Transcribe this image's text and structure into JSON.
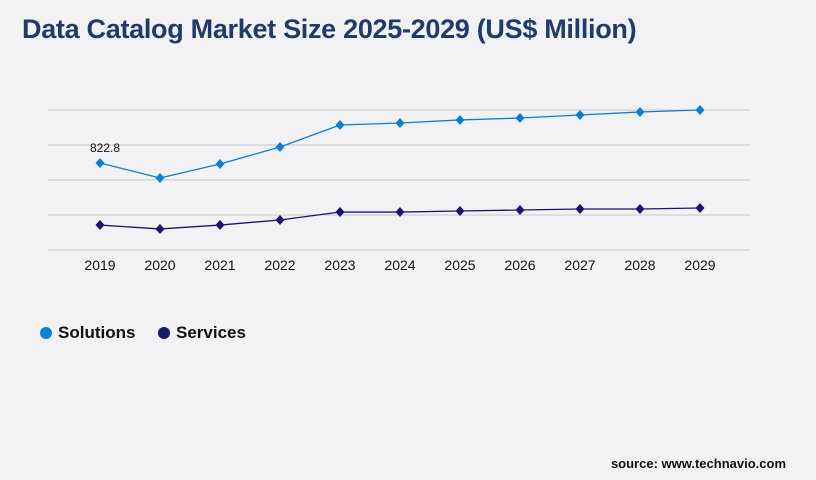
{
  "chart_data": {
    "type": "line",
    "title": "Data Catalog Market Size 2025-2029 (US$ Million)",
    "categories": [
      "2019",
      "2020",
      "2021",
      "2022",
      "2023",
      "2024",
      "2025",
      "2026",
      "2027",
      "2028",
      "2029"
    ],
    "series": [
      {
        "name": "Solutions",
        "color": "#0a7fd6",
        "values": [
          822.8,
          681,
          813,
          974,
          1182,
          1201,
          1230,
          1248,
          1277,
          1305,
          1324
        ]
      },
      {
        "name": "Services",
        "color": "#1a1670",
        "values": [
          236,
          199,
          236,
          284,
          359,
          359,
          369,
          378,
          388,
          388,
          397
        ]
      }
    ],
    "data_labels": [
      {
        "series": "Solutions",
        "category": "2019",
        "text": "822.8"
      }
    ],
    "ylim": [
      0,
      1324
    ],
    "y_ticks_shown": false,
    "grid": true,
    "legend_position": "bottom-left"
  },
  "source": "source: www.technavio.com"
}
